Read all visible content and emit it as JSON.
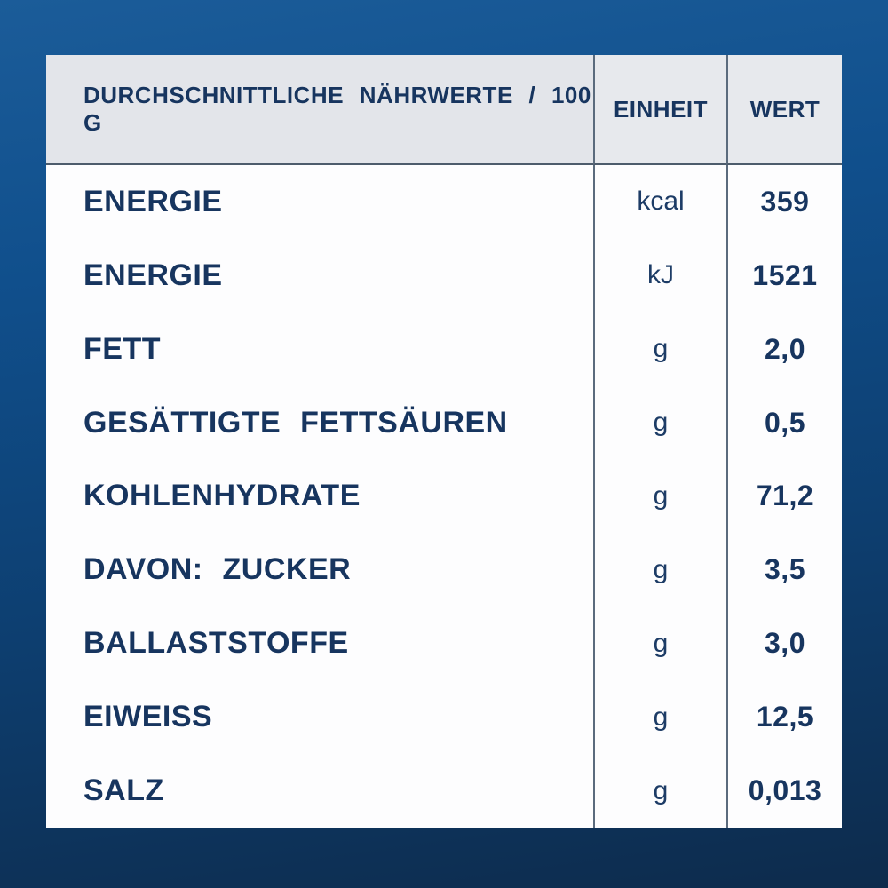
{
  "nutrition_table": {
    "header": {
      "parameter": "DURCHSCHNITTLICHE NÄHRWERTE / 100 G",
      "unit": "EINHEIT",
      "value": "WERT"
    },
    "rows": [
      {
        "label": "ENERGIE",
        "unit": "kcal",
        "value": "359"
      },
      {
        "label": "ENERGIE",
        "unit": "kJ",
        "value": "1521"
      },
      {
        "label": "FETT",
        "unit": "g",
        "value": "2,0"
      },
      {
        "label": "GESÄTTIGTE FETTSÄUREN",
        "unit": "g",
        "value": "0,5"
      },
      {
        "label": "KOHLENHYDRATE",
        "unit": "g",
        "value": "71,2"
      },
      {
        "label": "DAVON: ZUCKER",
        "unit": "g",
        "value": "3,5"
      },
      {
        "label": "BALLASTSTOFFE",
        "unit": "g",
        "value": "3,0"
      },
      {
        "label": "EIWEISS",
        "unit": "g",
        "value": "12,5"
      },
      {
        "label": "SALZ",
        "unit": "g",
        "value": "0,013"
      }
    ],
    "colors": {
      "text_navy": "#17355f",
      "header_bg": "#e7e9ed",
      "card_bg": "#fdfdfe",
      "separator": "#5b6b7d",
      "background_top": "#1b5c99",
      "background_bottom": "#0d2b4c"
    }
  }
}
